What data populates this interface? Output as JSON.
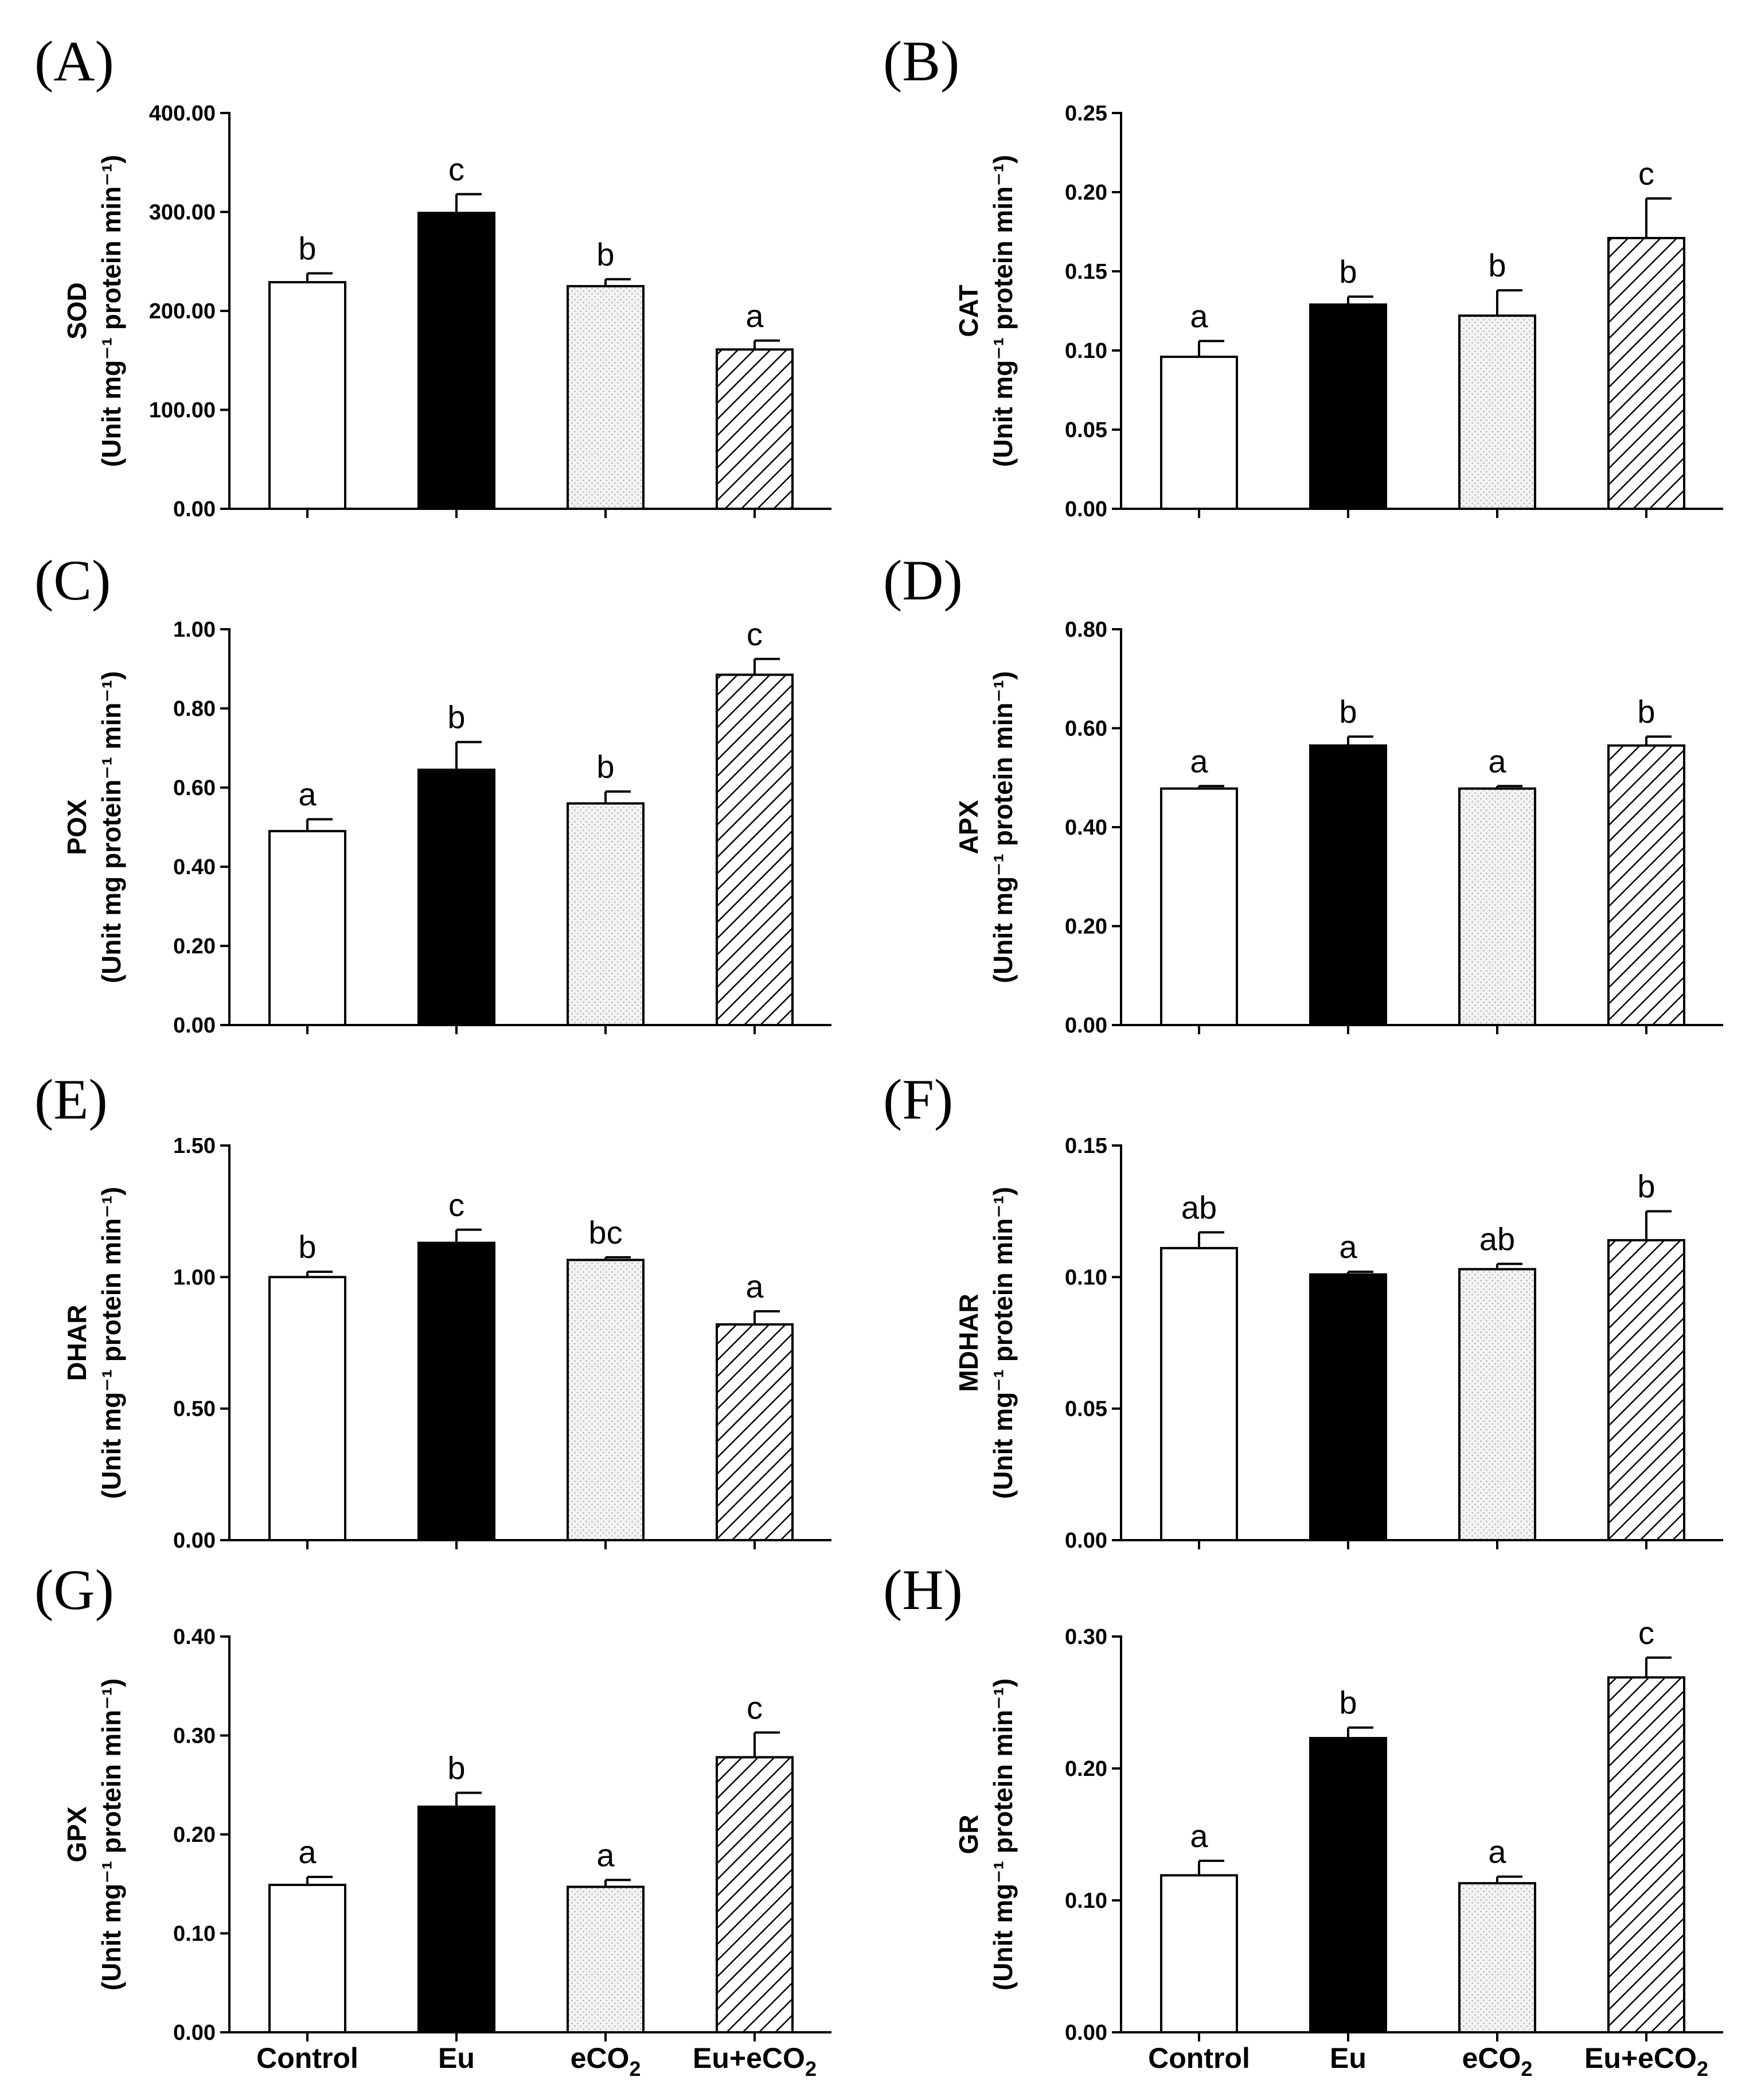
{
  "colors": {
    "axis": "#000000",
    "bar_outline": "#000000",
    "control_fill": "#ffffff",
    "eu_fill": "#000000",
    "eco2_fill": "#f1f1f1",
    "eueco2_fill": "#ffffff"
  },
  "fills": [
    "open",
    "solid-black",
    "fine-dots",
    "diagonal-hatch"
  ],
  "chart_data": [
    {
      "panel_label": "(A)",
      "type": "bar",
      "ylabel_name": "SOD",
      "ylabel_unit": "(Unit mg⁻¹ protein min⁻¹)",
      "categories": [
        "Control",
        "Eu",
        "eCO2",
        "Eu+eCO2"
      ],
      "values": [
        229,
        299,
        225,
        161
      ],
      "errors": [
        9,
        19,
        7,
        9
      ],
      "letters": [
        "b",
        "c",
        "b",
        "a"
      ],
      "ylim": [
        0,
        400
      ],
      "ticks": [
        "0.00",
        "100.00",
        "200.00",
        "300.00",
        "400.00"
      ]
    },
    {
      "panel_label": "(B)",
      "type": "bar",
      "ylabel_name": "CAT",
      "ylabel_unit": "(Unit mg⁻¹ protein min⁻¹)",
      "categories": [
        "Control",
        "Eu",
        "eCO2",
        "Eu+eCO2"
      ],
      "values": [
        0.096,
        0.129,
        0.122,
        0.171
      ],
      "errors": [
        0.01,
        0.005,
        0.016,
        0.025
      ],
      "letters": [
        "a",
        "b",
        "b",
        "c"
      ],
      "ylim": [
        0,
        0.25
      ],
      "ticks": [
        "0.00",
        "0.05",
        "0.10",
        "0.15",
        "0.20",
        "0.25"
      ]
    },
    {
      "panel_label": "(C)",
      "type": "bar",
      "ylabel_name": "POX",
      "ylabel_unit": "(Unit mg protein⁻¹ min⁻¹)",
      "categories": [
        "Control",
        "Eu",
        "eCO2",
        "Eu+eCO2"
      ],
      "values": [
        0.49,
        0.645,
        0.56,
        0.885
      ],
      "errors": [
        0.03,
        0.07,
        0.03,
        0.04
      ],
      "letters": [
        "a",
        "b",
        "b",
        "c"
      ],
      "ylim": [
        0,
        1.0
      ],
      "ticks": [
        "0.00",
        "0.20",
        "0.40",
        "0.60",
        "0.80",
        "1.00"
      ]
    },
    {
      "panel_label": "(D)",
      "type": "bar",
      "ylabel_name": "APX",
      "ylabel_unit": "(Unit mg⁻¹ protein min⁻¹)",
      "categories": [
        "Control",
        "Eu",
        "eCO2",
        "Eu+eCO2"
      ],
      "values": [
        0.478,
        0.565,
        0.478,
        0.565
      ],
      "errors": [
        0.005,
        0.018,
        0.005,
        0.018
      ],
      "letters": [
        "a",
        "b",
        "a",
        "b"
      ],
      "ylim": [
        0,
        0.8
      ],
      "ticks": [
        "0.00",
        "0.20",
        "0.40",
        "0.60",
        "0.80"
      ]
    },
    {
      "panel_label": "(E)",
      "type": "bar",
      "ylabel_name": "DHAR",
      "ylabel_unit": "(Unit mg⁻¹ protein min⁻¹)",
      "categories": [
        "Control",
        "Eu",
        "eCO2",
        "Eu+eCO2"
      ],
      "values": [
        1.0,
        1.13,
        1.065,
        0.82
      ],
      "errors": [
        0.02,
        0.05,
        0.01,
        0.05
      ],
      "letters": [
        "b",
        "c",
        "bc",
        "a"
      ],
      "ylim": [
        0,
        1.5
      ],
      "ticks": [
        "0.00",
        "0.50",
        "1.00",
        "1.50"
      ]
    },
    {
      "panel_label": "(F)",
      "type": "bar",
      "ylabel_name": "MDHAR",
      "ylabel_unit": "(Unit mg⁻¹ protein min⁻¹)",
      "categories": [
        "Control",
        "Eu",
        "eCO2",
        "Eu+eCO2"
      ],
      "values": [
        0.111,
        0.101,
        0.103,
        0.114
      ],
      "errors": [
        0.006,
        0.001,
        0.002,
        0.011
      ],
      "letters": [
        "ab",
        "a",
        "ab",
        "b"
      ],
      "ylim": [
        0,
        0.15
      ],
      "ticks": [
        "0.00",
        "0.05",
        "0.10",
        "0.15"
      ]
    },
    {
      "panel_label": "(G)",
      "type": "bar",
      "ylabel_name": "GPX",
      "ylabel_unit": "(Unit mg⁻¹ protein min⁻¹)",
      "categories": [
        "Control",
        "Eu",
        "eCO2",
        "Eu+eCO2"
      ],
      "values": [
        0.149,
        0.228,
        0.147,
        0.278
      ],
      "errors": [
        0.008,
        0.014,
        0.007,
        0.025
      ],
      "letters": [
        "a",
        "b",
        "a",
        "c"
      ],
      "ylim": [
        0,
        0.4
      ],
      "ticks": [
        "0.00",
        "0.10",
        "0.20",
        "0.30",
        "0.40"
      ]
    },
    {
      "panel_label": "(H)",
      "type": "bar",
      "ylabel_name": "GR",
      "ylabel_unit": "(Unit mg⁻¹ protein min⁻¹)",
      "categories": [
        "Control",
        "Eu",
        "eCO2",
        "Eu+eCO2"
      ],
      "values": [
        0.119,
        0.223,
        0.113,
        0.269
      ],
      "errors": [
        0.011,
        0.008,
        0.005,
        0.015
      ],
      "letters": [
        "a",
        "b",
        "a",
        "c"
      ],
      "ylim": [
        0,
        0.3
      ],
      "ticks": [
        "0.00",
        "0.10",
        "0.20",
        "0.30"
      ]
    }
  ]
}
